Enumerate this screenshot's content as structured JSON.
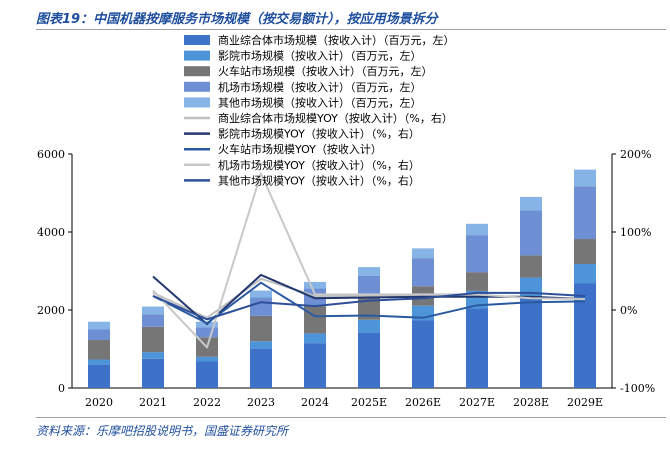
{
  "title": "图表19：中国机器按摩服务市场规模（按交易额计），按应用场景拆分",
  "source": "资料来源：乐摩吧招股说明书，国盛证券研究所",
  "colors": {
    "bar_other": "#86b4e6",
    "bar_airport": "#6e8fd4",
    "bar_station": "#767676",
    "bar_cinema": "#4e94d8",
    "bar_mall": "#3d72c8",
    "line_mall": "#c0c0c0",
    "line_cinema": "#23386e",
    "line_station": "#2a5aa0",
    "line_airport": "#c8c8c8",
    "line_other": "#2e4f9a"
  },
  "chart_data": {
    "type": "bar",
    "categories": [
      "2020",
      "2021",
      "2022",
      "2023",
      "2024",
      "2025E",
      "2026E",
      "2027E",
      "2028E",
      "2029E"
    ],
    "y_left": {
      "lim": [
        0,
        6000
      ],
      "ticks": [
        "0",
        "2000",
        "4000",
        "6000"
      ]
    },
    "y_right": {
      "lim": [
        -100,
        200
      ],
      "ticks": [
        "-100%",
        "0%",
        "100%",
        "200%"
      ]
    },
    "grid": false,
    "legend_position": "top",
    "series": [
      {
        "name": "商业综合体市场规模（按收入计）（百万元，左）",
        "kind": "bar",
        "axis": "left",
        "color_key": "bar_mall",
        "values": [
          600,
          750,
          680,
          1000,
          1150,
          1420,
          1730,
          2040,
          2360,
          2680
        ]
      },
      {
        "name": "影院市场规模（按收入计）（百万元，左）",
        "kind": "bar",
        "axis": "left",
        "color_key": "bar_cinema",
        "values": [
          130,
          170,
          120,
          200,
          250,
          330,
          380,
          450,
          470,
          500
        ]
      },
      {
        "name": "火车站市场规模（按收入计）（百万元，左）",
        "kind": "bar",
        "axis": "left",
        "color_key": "bar_station",
        "values": [
          500,
          650,
          500,
          650,
          700,
          550,
          500,
          480,
          570,
          640
        ]
      },
      {
        "name": "机场市场规模（按收入计）（百万元，左）",
        "kind": "bar",
        "axis": "left",
        "color_key": "bar_airport",
        "values": [
          270,
          320,
          250,
          470,
          450,
          580,
          720,
          950,
          1150,
          1350
        ]
      },
      {
        "name": "其他市场规模（按收入计）（百万元，左）",
        "kind": "bar",
        "axis": "left",
        "color_key": "bar_other",
        "values": [
          200,
          200,
          150,
          180,
          170,
          220,
          250,
          290,
          350,
          430
        ]
      },
      {
        "name": "商业综合体市场规模YOY（按收入计）（%，右）",
        "kind": "line",
        "axis": "right",
        "color_key": "line_mall",
        "values": [
          null,
          22,
          -10,
          40,
          18,
          18,
          19,
          18,
          16,
          14
        ]
      },
      {
        "name": "影院市场规模YOY（按收入计）（%，右）",
        "kind": "line",
        "axis": "right",
        "color_key": "line_cinema",
        "values": [
          null,
          43,
          -18,
          45,
          15,
          16,
          17,
          17,
          17,
          14
        ]
      },
      {
        "name": "火车站市场规模YOY（按收入计）",
        "kind": "line",
        "axis": "right",
        "color_key": "line_station",
        "values": [
          null,
          18,
          -17,
          35,
          -8,
          -7,
          -10,
          6,
          10,
          11
        ]
      },
      {
        "name": "机场市场规模YOY（按收入计）（%，右）",
        "kind": "line",
        "axis": "right",
        "color_key": "line_airport",
        "values": [
          null,
          25,
          -48,
          175,
          20,
          20,
          20,
          20,
          15,
          14
        ]
      },
      {
        "name": "其他市场规模YOY（按收入计）（%，右）",
        "kind": "line",
        "axis": "right",
        "color_key": "line_other",
        "values": [
          null,
          18,
          -12,
          10,
          5,
          12,
          15,
          22,
          22,
          18
        ]
      }
    ]
  }
}
